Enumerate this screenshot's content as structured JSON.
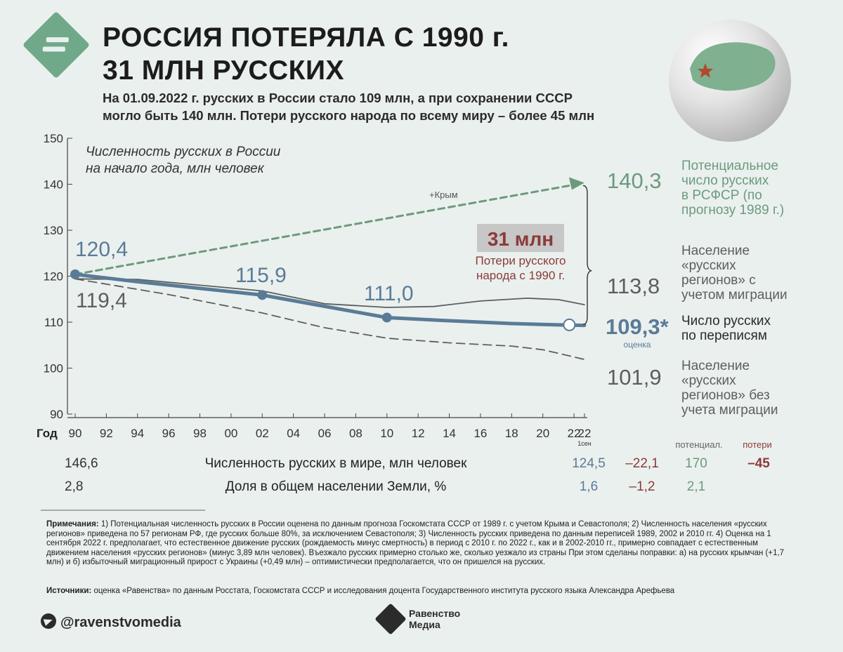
{
  "header": {
    "title_line1": "РОССИЯ ПОТЕРЯЛА С 1990 г.",
    "title_line2": "31 МЛН РУССКИХ",
    "subtitle_line1": "На 01.09.2022 г. русских в России стало 109 млн, а при сохранении СССР",
    "subtitle_line2": "могло быть 140 млн. Потери русского народа по всему миру – более 45 млн"
  },
  "colors": {
    "accent_green": "#6c9a7e",
    "census_blue": "#5a7b97",
    "gray_line": "#5e5e5e",
    "loss_red": "#8b3a3a",
    "background": "#eaf0ee"
  },
  "icons": {
    "logo": "equals-diamond-icon",
    "globe": "russia-globe-icon",
    "telegram": "telegram-icon",
    "brand": "ravenstvo-mark-icon"
  },
  "chart_data": {
    "type": "line",
    "title_line1": "Численность русских в России",
    "title_line2": "на начало года, млн человек",
    "ylim": [
      90,
      150
    ],
    "yticks": [
      "150",
      "140",
      "130",
      "120",
      "110",
      "100",
      "90"
    ],
    "xaxis_label": "Год",
    "xticks": [
      "90",
      "92",
      "94",
      "96",
      "98",
      "00",
      "02",
      "04",
      "06",
      "08",
      "10",
      "12",
      "14",
      "16",
      "18",
      "20",
      "22",
      "22"
    ],
    "xtick_sub": "1сен",
    "series": [
      {
        "id": "potential",
        "x": [
          1990,
          2022.67
        ],
        "y": [
          120.4,
          140.3
        ],
        "style": "dashed-arrow"
      },
      {
        "id": "regions_migration",
        "x": [
          1990,
          1994,
          2002,
          2006,
          2010,
          2013,
          2016,
          2019,
          2021,
          2022.67
        ],
        "y": [
          119.4,
          119.3,
          116.8,
          114.0,
          113.2,
          113.4,
          114.6,
          115.2,
          114.9,
          113.8
        ],
        "style": "thin"
      },
      {
        "id": "census",
        "x": [
          1990,
          1994,
          2002,
          2010,
          2014,
          2018,
          2021,
          2022.67
        ],
        "y": [
          120.4,
          118.8,
          115.9,
          111.0,
          110.3,
          109.7,
          109.4,
          109.3
        ],
        "style": "thick"
      },
      {
        "id": "regions_no_migration",
        "x": [
          1990,
          1996,
          2002,
          2006,
          2010,
          2014,
          2018,
          2020,
          2022.67
        ],
        "y": [
          119.4,
          116.0,
          112.0,
          108.8,
          106.5,
          105.5,
          104.8,
          104.0,
          101.9
        ],
        "style": "dashed"
      }
    ],
    "point_labels": {
      "p1990_census": "120,4",
      "p1990_regions": "119,4",
      "p2002": "115,9",
      "p2010": "111,0",
      "crimea_note": "+Крым"
    },
    "end_values": {
      "potential": "140,3",
      "regions_migration": "113,8",
      "census": "109,3*",
      "census_note": "оценка",
      "regions_no_migration": "101,9"
    },
    "legend": {
      "potential": [
        "Потенциальное",
        "число русских",
        "в РСФСР (по",
        "прогнозу 1989 г.)"
      ],
      "regions_migration": [
        "Население",
        "«русских",
        "регионов» с",
        "учетом миграции"
      ],
      "census": [
        "Число русских",
        "по переписям"
      ],
      "regions_no_migration": [
        "Население",
        "«русских",
        "регионов» без",
        "учета миграции"
      ]
    },
    "loss": {
      "value": "31 млн",
      "caption_line1": "Потери русского",
      "caption_line2": "народа с 1990 г."
    }
  },
  "table": {
    "header_potential": "потенциал.",
    "header_losses": "потери",
    "rows": [
      {
        "start": "146,6",
        "label": "Численность русских в мире, млн человек",
        "end": "124,5",
        "change": "–22,1",
        "potential": "170",
        "losses": "–45"
      },
      {
        "start": "2,8",
        "label": "Доля в общем населении Земли, %",
        "end": "1,6",
        "change": "–1,2",
        "potential": "2,1",
        "losses": ""
      }
    ]
  },
  "notes": {
    "notes_heading": "Примечания:",
    "notes_text": "1) Потенциальная численность русских в России оценена по данным прогноза Госкомстата СССР от 1989 г. с учетом Крыма и Севастополя; 2) Численность населения «русских регионов» приведена по 57 регионам РФ, где русских больше 80%, за исключением Севастополя; 3) Численность русских приведена по данным переписей 1989, 2002 и 2010 гг. 4) Оценка на 1 сентября 2022 г. предполагает, что естественное движение русских (рождаемость минус смертность) в период с 2010 г. по 2022 г., как и в 2002-2010 гг., примерно совпадает с естественным движением населения «русских регионов» (минус 3,89 млн человек). Въезжало русских примерно столько же, сколько уезжало из страны При этом сделаны поправки: а) на русских крымчан (+1,7 млн) и б) избыточный миграционный прирост с Украины (+0,49 млн) – оптимистически предполагается, что он пришелся на русских.",
    "sources_heading": "Источники:",
    "sources_text": "оценка «Равенства» по данным Росстата, Госкомстата СССР и исследования доцента Государственного института русского языка Александра Арефьева"
  },
  "footer": {
    "handle": "@ravenstvomedia",
    "brand_line1": "Равенство",
    "brand_line2": "Медиа"
  }
}
